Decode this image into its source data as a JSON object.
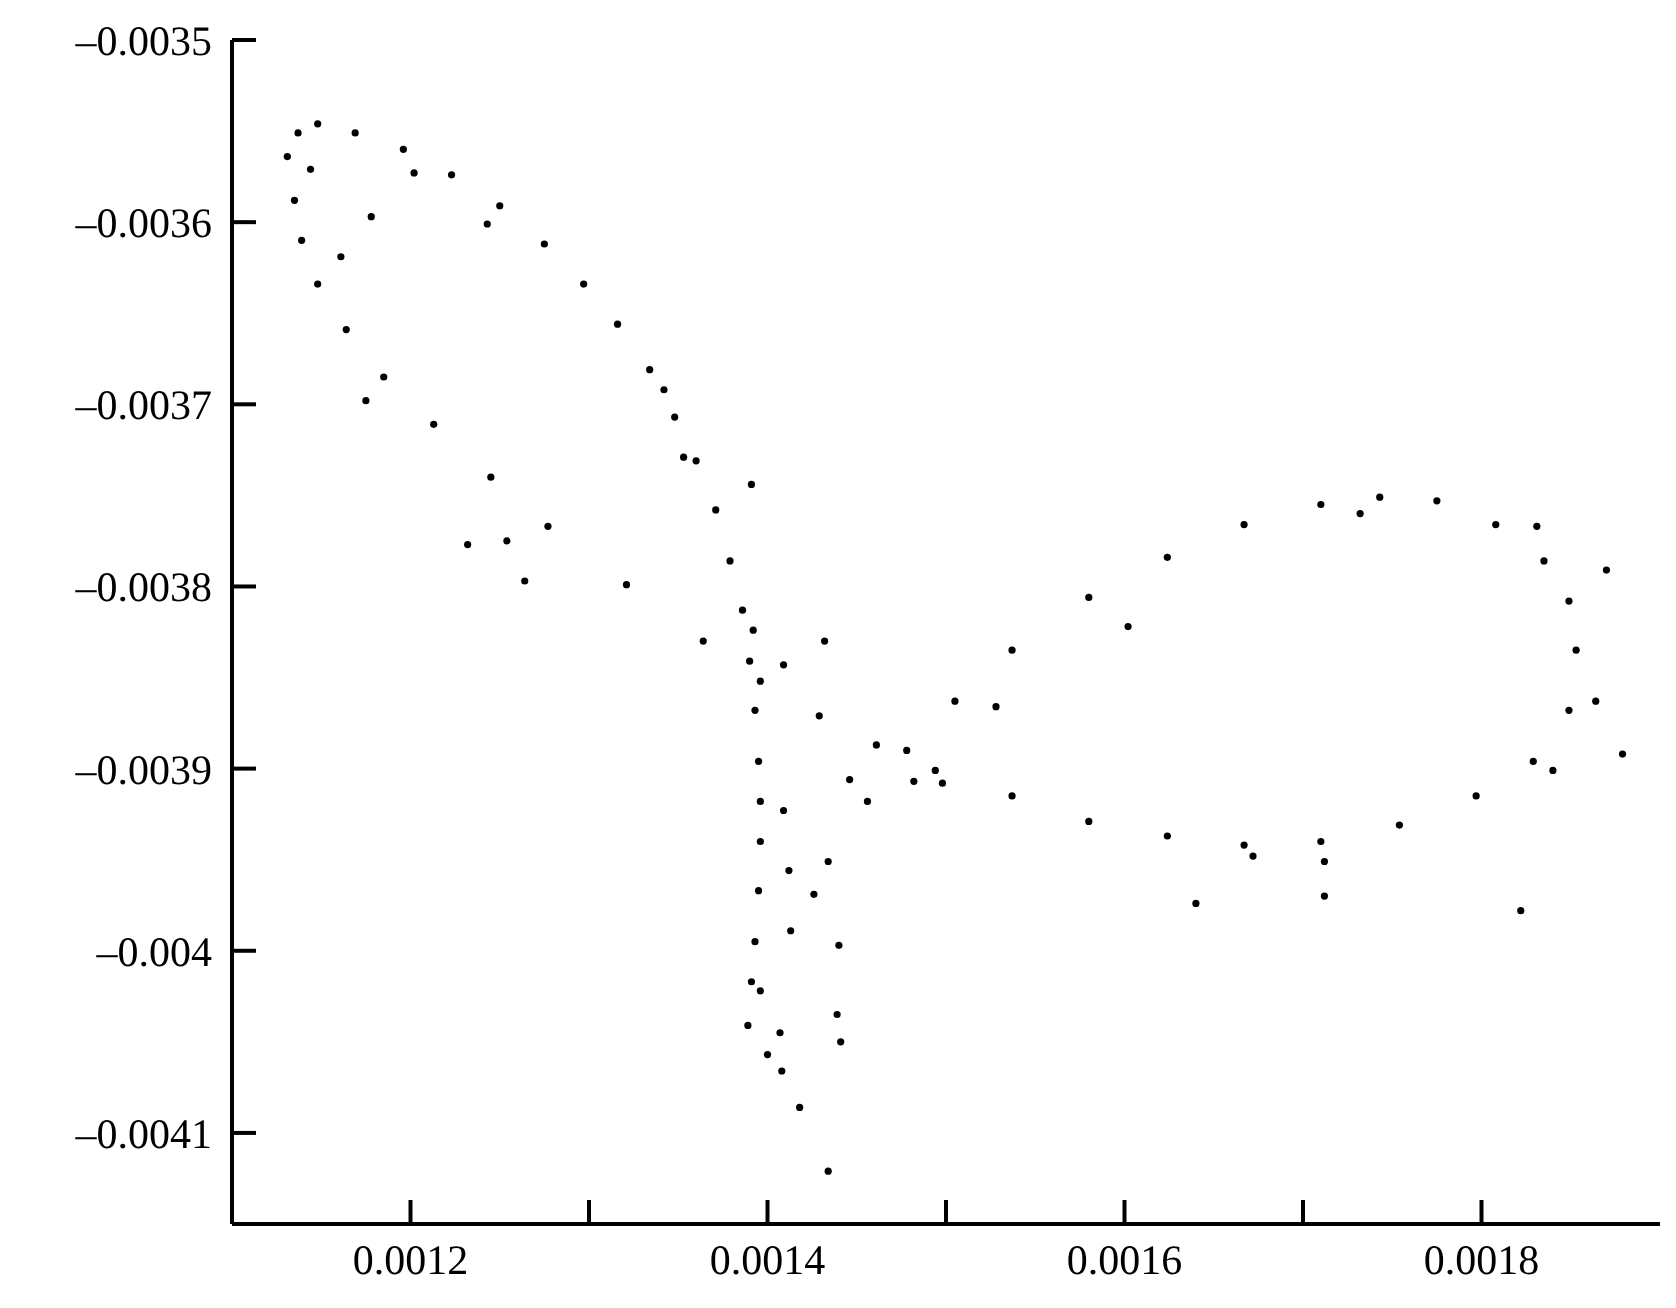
{
  "chart_data": {
    "type": "scatter",
    "color": "#000000",
    "marker": "circle",
    "xlim": [
      0.0011,
      0.0019
    ],
    "ylim": [
      -0.00415,
      -0.0035
    ],
    "xticks": [
      0.0012,
      {
        "value": 0.0013,
        "label": null
      },
      0.0014,
      {
        "value": 0.0015,
        "label": null
      },
      0.0016,
      {
        "value": 0.0017,
        "label": null
      },
      0.0018
    ],
    "yticks": [
      {
        "value": -0.0035,
        "label": "–0.0035"
      },
      {
        "value": -0.0036,
        "label": "–0.0036"
      },
      {
        "value": -0.0037,
        "label": "–0.0037"
      },
      {
        "value": -0.0038,
        "label": "–0.0038"
      },
      {
        "value": -0.0039,
        "label": "–0.0039"
      },
      {
        "value": -0.004,
        "label": "–0.004"
      },
      {
        "value": -0.0041,
        "label": "–0.0041"
      }
    ],
    "x": [
      0.001389,
      0.001391,
      0.001393,
      0.001395,
      0.001396,
      0.001396,
      0.001395,
      0.001393,
      0.00139,
      0.001386,
      0.001379,
      0.001371,
      0.00136,
      0.001348,
      0.001334,
      0.001316,
      0.001297,
      0.001275,
      0.00125,
      0.001223,
      0.001196,
      0.001169,
      0.001148,
      0.001137,
      0.001131,
      0.001135,
      0.001139,
      0.001148,
      0.001164,
      0.001185,
      0.001213,
      0.001245,
      0.001277,
      0.001321,
      0.001364,
      0.001396,
      0.001429,
      0.001461,
      0.001494,
      0.001537,
      0.00158,
      0.001624,
      0.001667,
      0.00171,
      0.001754,
      0.001797,
      0.001829,
      0.001849,
      0.001853,
      0.001849,
      0.001835,
      0.001808,
      0.001775,
      0.001743,
      0.00171,
      0.001667,
      0.001624,
      0.00158,
      0.001537,
      0.001505,
      0.001478,
      0.001456,
      0.001434,
      0.001413,
      0.001396,
      0.001144,
      0.001161,
      0.001178,
      0.001175,
      0.001202,
      0.001243,
      0.001232,
      0.001254,
      0.001264,
      0.001342,
      0.001353,
      0.001391,
      0.001392,
      0.001409,
      0.001432,
      0.001409,
      0.001412,
      0.001426,
      0.00144,
      0.001439,
      0.001441,
      0.0014,
      0.001408,
      0.001418,
      0.001434,
      0.001407,
      0.001446,
      0.001482,
      0.001498,
      0.001528,
      0.001602,
      0.001672,
      0.001712,
      0.001712,
      0.00164,
      0.001822,
      0.00184,
      0.00187,
      0.001864,
      0.001879,
      0.001732,
      0.001831
    ],
    "values": [
      -0.004041,
      -0.004017,
      -0.003995,
      -0.003967,
      -0.00394,
      -0.003918,
      -0.003896,
      -0.003868,
      -0.003841,
      -0.003813,
      -0.003786,
      -0.003758,
      -0.003731,
      -0.003707,
      -0.003681,
      -0.003656,
      -0.003634,
      -0.003612,
      -0.003591,
      -0.003574,
      -0.00356,
      -0.003551,
      -0.003546,
      -0.003551,
      -0.003564,
      -0.003588,
      -0.00361,
      -0.003634,
      -0.003659,
      -0.003685,
      -0.003711,
      -0.00374,
      -0.003767,
      -0.003799,
      -0.00383,
      -0.003852,
      -0.003871,
      -0.003887,
      -0.003901,
      -0.003915,
      -0.003929,
      -0.003937,
      -0.003942,
      -0.00394,
      -0.003931,
      -0.003915,
      -0.003896,
      -0.003868,
      -0.003835,
      -0.003808,
      -0.003786,
      -0.003766,
      -0.003753,
      -0.003751,
      -0.003755,
      -0.003766,
      -0.003784,
      -0.003806,
      -0.003835,
      -0.003863,
      -0.00389,
      -0.003918,
      -0.003951,
      -0.003989,
      -0.004022,
      -0.003571,
      -0.003619,
      -0.003597,
      -0.003698,
      -0.003573,
      -0.003601,
      -0.003777,
      -0.003775,
      -0.003797,
      -0.003692,
      -0.003729,
      -0.003744,
      -0.003824,
      -0.003843,
      -0.00383,
      -0.003923,
      -0.003956,
      -0.003969,
      -0.003997,
      -0.004035,
      -0.00405,
      -0.004057,
      -0.004066,
      -0.004086,
      -0.004121,
      -0.004045,
      -0.003906,
      -0.003907,
      -0.003908,
      -0.003866,
      -0.003822,
      -0.003948,
      -0.003951,
      -0.00397,
      -0.003974,
      -0.003978,
      -0.003901,
      -0.003791,
      -0.003863,
      -0.003892,
      -0.00376,
      -0.003767
    ]
  }
}
